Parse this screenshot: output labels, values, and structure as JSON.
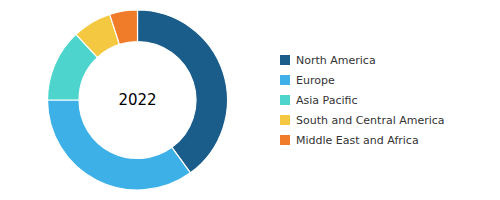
{
  "chart_data": {
    "type": "donut",
    "categories": [
      "North America",
      "Europe",
      "Asia Pacific",
      "South and Central America",
      "Middle East and Africa"
    ],
    "values": [
      40,
      35,
      13,
      7,
      5
    ],
    "colors": [
      "#1a5c8a",
      "#3db0e8",
      "#4dd4cc",
      "#f5c842",
      "#f07c2a"
    ],
    "annotations": [
      "2022"
    ],
    "legend": "right"
  }
}
